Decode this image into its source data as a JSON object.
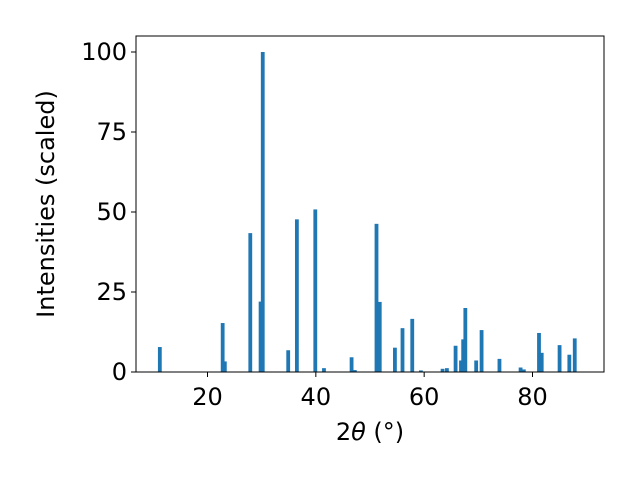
{
  "chart_data": {
    "type": "bar",
    "xlabel_main": "2",
    "xlabel_theta": "θ",
    "xlabel_unit": " (°)",
    "ylabel": "Intensities (scaled)",
    "xlim": [
      6.8,
      93.2
    ],
    "ylim": [
      0,
      105
    ],
    "xticks": [
      "20",
      "40",
      "60",
      "80"
    ],
    "yticks": [
      "0",
      "25",
      "50",
      "75",
      "100"
    ],
    "grid": false,
    "bar_color": "#1f77b4",
    "x": [
      11.2,
      22.8,
      23.2,
      27.9,
      29.8,
      30.2,
      34.9,
      36.5,
      39.9,
      41.5,
      46.6,
      47.2,
      51.2,
      51.8,
      54.6,
      56.0,
      57.8,
      59.4,
      63.4,
      64.2,
      65.8,
      66.8,
      67.2,
      67.6,
      69.6,
      70.6,
      73.9,
      77.8,
      78.4,
      81.2,
      81.7,
      85.0,
      86.8,
      87.8
    ],
    "values": [
      7.8,
      15.3,
      3.3,
      43.4,
      22.0,
      100.0,
      6.8,
      47.7,
      50.8,
      1.2,
      4.6,
      0.6,
      46.3,
      21.9,
      7.6,
      13.7,
      16.6,
      0.5,
      1.0,
      1.2,
      8.2,
      3.6,
      10.2,
      20.0,
      3.6,
      13.1,
      4.1,
      1.4,
      0.8,
      12.2,
      6.0,
      8.4,
      5.4,
      10.5
    ]
  }
}
